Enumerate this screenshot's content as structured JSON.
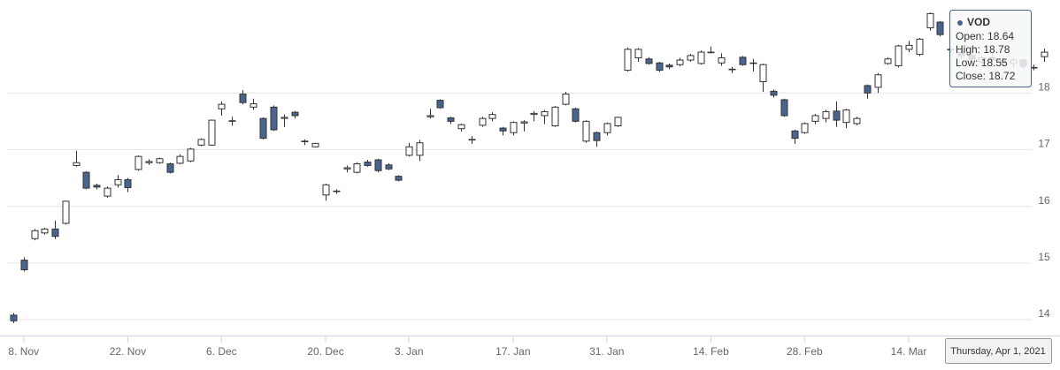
{
  "chart_data": {
    "type": "candlestick",
    "categories": [
      null,
      "8. Nov",
      null,
      null,
      null,
      null,
      null,
      null,
      null,
      null,
      null,
      "22. Nov",
      null,
      null,
      null,
      null,
      null,
      null,
      null,
      null,
      "6. Dec",
      null,
      null,
      null,
      null,
      null,
      null,
      null,
      null,
      null,
      "20. Dec",
      null,
      null,
      null,
      null,
      null,
      null,
      null,
      "3. Jan",
      null,
      null,
      null,
      null,
      null,
      null,
      null,
      null,
      null,
      "17. Jan",
      null,
      null,
      null,
      null,
      null,
      null,
      null,
      null,
      "31. Jan",
      null,
      null,
      null,
      null,
      null,
      null,
      null,
      null,
      null,
      "14. Feb",
      null,
      null,
      null,
      null,
      null,
      null,
      null,
      null,
      "28. Feb",
      null,
      null,
      null,
      null,
      null,
      null,
      null,
      null,
      null,
      "14. Mar",
      null,
      null,
      null,
      null,
      null,
      null,
      null,
      null,
      null,
      null,
      null,
      null,
      null
    ],
    "series": [
      {
        "name": "VOD",
        "up_color": "#ffffff",
        "down_color": "#4a6490",
        "line_color": "#333333",
        "open": [
          14.08,
          15.05,
          15.43,
          15.53,
          15.6,
          15.7,
          16.72,
          16.6,
          16.37,
          16.18,
          16.38,
          16.47,
          16.65,
          16.77,
          16.77,
          16.75,
          16.76,
          16.8,
          17.08,
          17.08,
          17.72,
          17.5,
          17.98,
          17.75,
          17.55,
          17.75,
          17.55,
          17.66,
          17.14,
          17.05,
          16.2,
          16.26,
          16.66,
          16.6,
          16.78,
          16.82,
          16.73,
          16.53,
          16.9,
          16.9,
          17.58,
          17.87,
          17.56,
          17.37,
          17.17,
          17.43,
          17.55,
          17.38,
          17.3,
          17.47,
          17.62,
          17.6,
          17.42,
          17.8,
          17.72,
          17.15,
          17.3,
          17.3,
          17.42,
          18.4,
          18.62,
          18.6,
          18.53,
          18.49,
          18.5,
          18.58,
          18.52,
          18.71,
          18.53,
          18.41,
          18.63,
          18.52,
          18.2,
          18.03,
          17.88,
          17.33,
          17.3,
          17.5,
          17.55,
          17.68,
          17.48,
          17.46,
          18.13,
          18.1,
          18.52,
          18.48,
          18.77,
          18.68,
          19.15,
          19.25,
          18.76,
          18.72,
          18.66,
          18.55,
          18.62,
          18.58,
          18.52,
          18.58,
          18.44,
          18.64
        ],
        "high": [
          14.12,
          15.1,
          15.6,
          15.62,
          15.75,
          16.1,
          16.98,
          16.62,
          16.4,
          16.35,
          16.55,
          16.5,
          16.9,
          16.83,
          16.86,
          16.77,
          16.92,
          17.03,
          17.2,
          17.53,
          17.85,
          17.58,
          18.05,
          17.9,
          17.57,
          17.78,
          17.62,
          17.68,
          17.18,
          17.12,
          16.4,
          16.3,
          16.72,
          16.78,
          16.82,
          16.84,
          16.76,
          16.55,
          17.12,
          17.17,
          17.72,
          17.89,
          17.58,
          17.46,
          17.24,
          17.58,
          17.66,
          17.4,
          17.5,
          17.52,
          17.68,
          17.7,
          17.77,
          18.02,
          17.74,
          17.52,
          17.32,
          17.48,
          17.58,
          18.8,
          18.79,
          18.63,
          18.55,
          18.52,
          18.62,
          18.69,
          18.75,
          18.82,
          18.7,
          18.46,
          18.65,
          18.6,
          18.52,
          18.06,
          17.9,
          17.35,
          17.48,
          17.63,
          17.7,
          17.85,
          17.72,
          17.58,
          18.15,
          18.35,
          18.63,
          18.85,
          18.92,
          18.97,
          19.42,
          19.27,
          18.8,
          18.76,
          18.7,
          18.65,
          18.7,
          18.64,
          18.62,
          18.6,
          18.5,
          18.78
        ],
        "low": [
          13.94,
          14.85,
          15.4,
          15.5,
          15.42,
          15.68,
          16.7,
          16.3,
          16.3,
          16.15,
          16.33,
          16.25,
          16.63,
          16.73,
          16.75,
          16.58,
          16.74,
          16.78,
          17.06,
          17.07,
          17.6,
          17.42,
          17.8,
          17.7,
          17.18,
          17.33,
          17.4,
          17.55,
          17.08,
          17.04,
          16.1,
          16.22,
          16.6,
          16.58,
          16.7,
          16.6,
          16.64,
          16.44,
          16.88,
          16.8,
          17.55,
          17.72,
          17.45,
          17.32,
          17.1,
          17.4,
          17.5,
          17.25,
          17.25,
          17.32,
          17.5,
          17.45,
          17.4,
          17.78,
          17.48,
          17.12,
          17.05,
          17.25,
          17.4,
          18.38,
          18.55,
          18.5,
          18.37,
          18.42,
          18.47,
          18.55,
          18.5,
          18.7,
          18.48,
          18.35,
          18.48,
          18.38,
          18.02,
          17.92,
          17.58,
          17.1,
          17.28,
          17.45,
          17.48,
          17.4,
          17.38,
          17.43,
          17.9,
          18.0,
          18.5,
          18.45,
          18.72,
          18.65,
          19.1,
          19.0,
          18.7,
          18.6,
          18.55,
          18.5,
          18.52,
          18.48,
          18.45,
          18.42,
          18.4,
          18.55
        ],
        "close": [
          13.98,
          14.88,
          15.57,
          15.6,
          15.47,
          16.09,
          16.77,
          16.32,
          16.34,
          16.32,
          16.47,
          16.33,
          16.88,
          16.79,
          16.84,
          16.6,
          16.88,
          17.01,
          17.18,
          17.52,
          17.8,
          17.51,
          17.83,
          17.81,
          17.2,
          17.35,
          17.57,
          17.6,
          17.15,
          17.11,
          16.38,
          16.27,
          16.68,
          16.75,
          16.72,
          16.63,
          16.66,
          16.46,
          17.05,
          17.12,
          17.6,
          17.74,
          17.5,
          17.44,
          17.18,
          17.55,
          17.62,
          17.33,
          17.48,
          17.49,
          17.64,
          17.67,
          17.75,
          17.98,
          17.5,
          17.5,
          17.16,
          17.46,
          17.57,
          18.77,
          18.77,
          18.52,
          18.4,
          18.46,
          18.58,
          18.66,
          18.72,
          18.72,
          18.62,
          18.42,
          18.5,
          18.53,
          18.5,
          17.96,
          17.6,
          17.2,
          17.46,
          17.6,
          17.67,
          17.52,
          17.7,
          17.55,
          18.0,
          18.32,
          18.6,
          18.83,
          18.84,
          18.95,
          19.4,
          19.03,
          18.77,
          18.66,
          18.6,
          18.62,
          18.58,
          18.53,
          18.58,
          18.47,
          18.45,
          18.72
        ]
      }
    ],
    "ylim": [
      13.72,
      19.64
    ],
    "yticks": [
      14,
      15,
      16,
      17,
      18
    ],
    "grid": true,
    "tooltip": {
      "header": "Thursday, Apr 1, 2021",
      "labels": [
        "Open:",
        "High:",
        "Low:",
        "Close:"
      ]
    }
  }
}
